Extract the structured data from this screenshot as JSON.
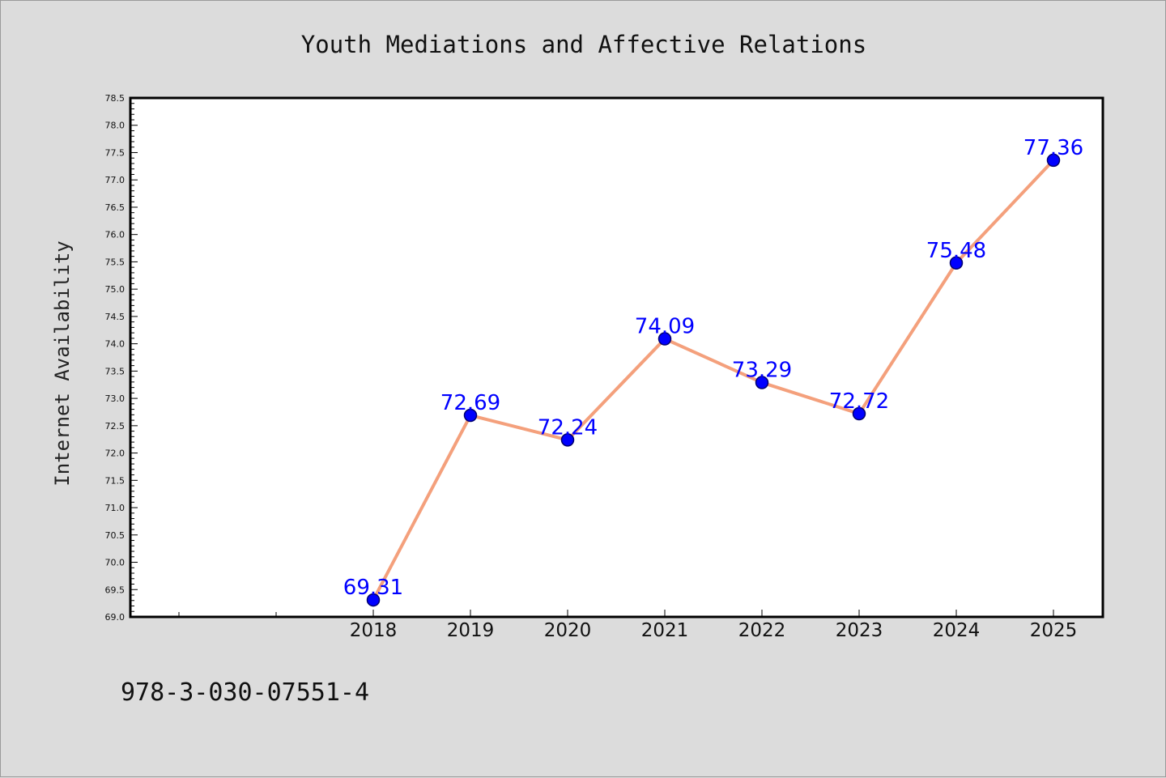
{
  "chart_data": {
    "type": "line",
    "title": "Youth Mediations and Affective Relations",
    "xlabel": "",
    "ylabel": "Internet Availability",
    "categories": [
      "2018",
      "2019",
      "2020",
      "2021",
      "2022",
      "2023",
      "2024",
      "2025"
    ],
    "values": [
      69.31,
      72.69,
      72.24,
      74.09,
      73.29,
      72.72,
      75.48,
      77.36
    ],
    "data_labels": [
      "69.31",
      "72.69",
      "72.24",
      "74.09",
      "73.29",
      "72.72",
      "75.48",
      "77.36"
    ],
    "ylim": [
      69.0,
      78.5
    ],
    "y_ticks": [
      "69.0",
      "69.5",
      "70.0",
      "70.5",
      "71.0",
      "71.5",
      "72.0",
      "72.5",
      "73.0",
      "73.5",
      "74.0",
      "74.5",
      "75.0",
      "75.5",
      "76.0",
      "76.5",
      "77.0",
      "77.5",
      "78.0",
      "78.5"
    ],
    "grid": false,
    "line_color": "#f4a07c",
    "marker_color": "#0000ff",
    "label_color": "#0000ff"
  },
  "footnote": "978-3-030-07551-4"
}
